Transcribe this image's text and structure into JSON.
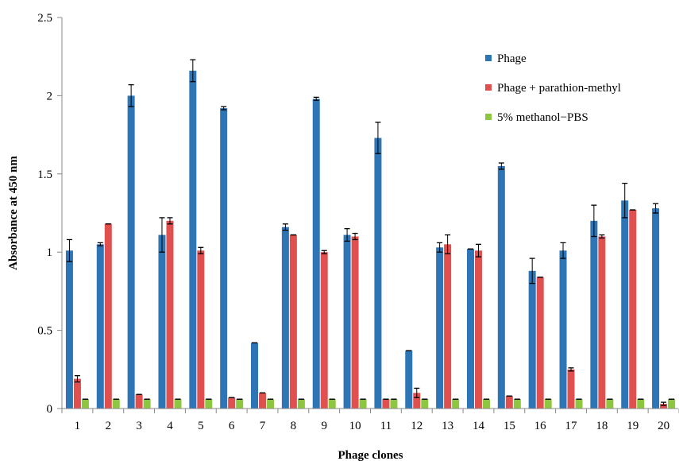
{
  "chart_data": {
    "type": "bar",
    "title": "",
    "xlabel": "Phage clones",
    "ylabel": "Absorbance at 450 nm",
    "ylim": [
      0,
      2.5
    ],
    "yticks": [
      "0",
      "0.5",
      "1",
      "1.5",
      "2",
      "2.5"
    ],
    "categories": [
      "1",
      "2",
      "3",
      "4",
      "5",
      "6",
      "7",
      "8",
      "9",
      "10",
      "11",
      "12",
      "13",
      "14",
      "15",
      "16",
      "17",
      "18",
      "19",
      "20"
    ],
    "grid": false,
    "legend_position": "top-right",
    "series": [
      {
        "name": "Phage",
        "color": "#2e75b6",
        "values": [
          1.01,
          1.05,
          2.0,
          1.11,
          2.16,
          1.92,
          0.42,
          1.16,
          1.98,
          1.11,
          1.73,
          0.37,
          1.03,
          1.02,
          1.55,
          0.88,
          1.01,
          1.2,
          1.33,
          1.28
        ],
        "errors": [
          0.07,
          0.01,
          0.07,
          0.11,
          0.07,
          0.01,
          0.0,
          0.02,
          0.01,
          0.04,
          0.1,
          0.0,
          0.03,
          0.0,
          0.02,
          0.08,
          0.05,
          0.1,
          0.11,
          0.03
        ]
      },
      {
        "name": "Phage + parathion-methyl",
        "color": "#e0504f",
        "values": [
          0.19,
          1.18,
          0.09,
          1.2,
          1.01,
          0.07,
          0.1,
          1.11,
          1.0,
          1.1,
          0.06,
          0.1,
          1.05,
          1.01,
          0.08,
          0.84,
          0.25,
          1.1,
          1.27,
          0.03
        ],
        "errors": [
          0.02,
          0.0,
          0.0,
          0.02,
          0.02,
          0.0,
          0.0,
          0.0,
          0.01,
          0.02,
          0.0,
          0.03,
          0.06,
          0.04,
          0.0,
          0.0,
          0.01,
          0.01,
          0.0,
          0.01
        ]
      },
      {
        "name": "5% methanol−PBS",
        "color": "#8dc63f",
        "values": [
          0.06,
          0.06,
          0.06,
          0.06,
          0.06,
          0.06,
          0.06,
          0.06,
          0.06,
          0.06,
          0.06,
          0.06,
          0.06,
          0.06,
          0.06,
          0.06,
          0.06,
          0.06,
          0.06,
          0.06
        ],
        "errors": [
          0,
          0,
          0,
          0,
          0,
          0,
          0,
          0,
          0,
          0,
          0,
          0,
          0,
          0,
          0,
          0,
          0,
          0,
          0,
          0
        ]
      }
    ]
  }
}
